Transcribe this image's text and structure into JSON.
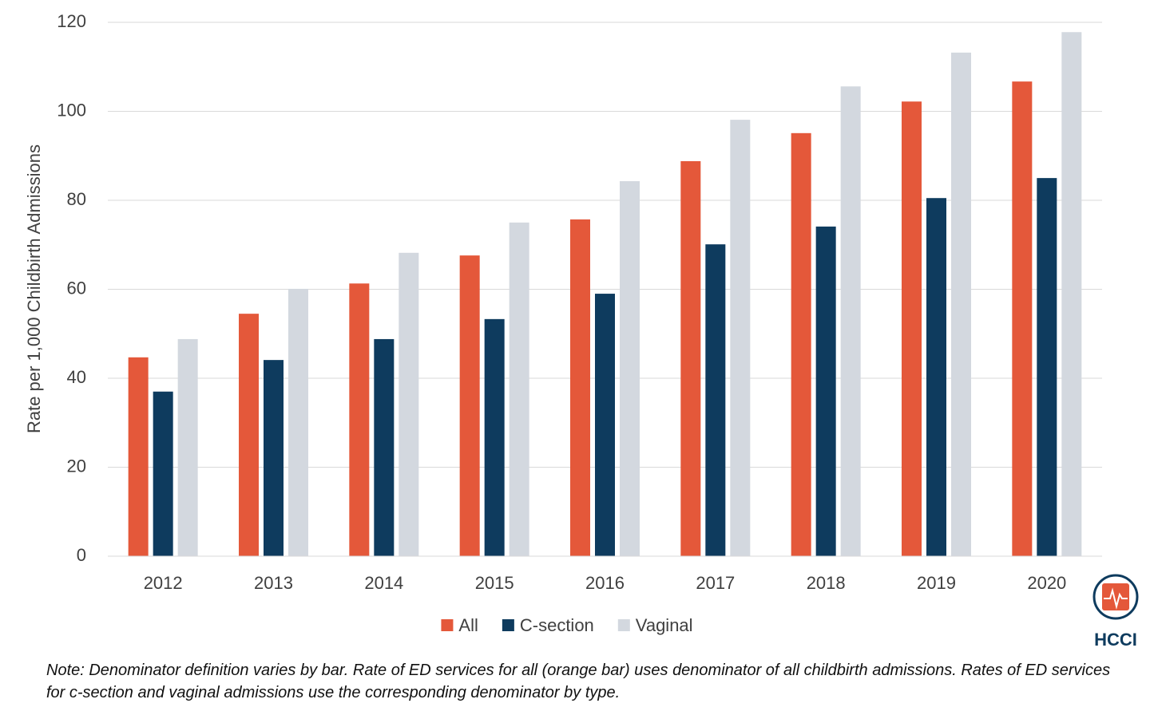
{
  "chart_data": {
    "type": "bar",
    "y_label": "Rate per 1,000 Childbirth Admissions",
    "categories": [
      "2012",
      "2013",
      "2014",
      "2015",
      "2016",
      "2017",
      "2018",
      "2019",
      "2020"
    ],
    "series": [
      {
        "name": "All",
        "color": "#e4583a",
        "values": [
          44.7,
          54.5,
          61.3,
          67.6,
          75.7,
          88.8,
          95.1,
          102.2,
          106.7
        ]
      },
      {
        "name": "C-section",
        "color": "#0e3b5e",
        "values": [
          37.0,
          44.1,
          48.8,
          53.3,
          59.0,
          70.1,
          74.1,
          80.5,
          85.0
        ]
      },
      {
        "name": "Vaginal",
        "color": "#d3d8df",
        "values": [
          48.8,
          60.1,
          68.2,
          75.0,
          84.3,
          98.1,
          105.6,
          113.2,
          117.8
        ]
      }
    ],
    "ylim": [
      0,
      120
    ],
    "yticks": [
      0,
      20,
      40,
      60,
      80,
      100,
      120
    ],
    "grid": true,
    "note": "Note: Denominator definition varies by bar. Rate of ED services for all (orange bar) uses denominator of all childbirth admissions. Rates of ED services for c-section and vaginal admissions use the corresponding denominator by type."
  },
  "logo": {
    "text": "HCCI"
  }
}
